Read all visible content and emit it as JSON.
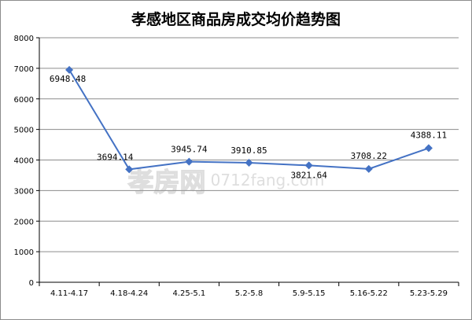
{
  "chart_data": {
    "type": "line",
    "title": "孝感地区商品房成交均价趋势图",
    "categories": [
      "4.11-4.17",
      "4.18-4.24",
      "4.25-5.1",
      "5.2-5.8",
      "5.9-5.15",
      "5.16-5.22",
      "5.23-5.29"
    ],
    "series": [
      {
        "values": [
          6948.48,
          3694.14,
          3945.74,
          3910.85,
          3821.64,
          3708.22,
          4388.11
        ],
        "labels": [
          "6948.48",
          "3694.14",
          "3945.74",
          "3910.85",
          "3821.64",
          "3708.22",
          "4388.11"
        ],
        "color": "#4472C4"
      }
    ],
    "ylim": [
      0,
      8000
    ],
    "yticks": [
      "0",
      "1000",
      "2000",
      "3000",
      "4000",
      "5000",
      "6000",
      "7000",
      "8000"
    ],
    "grid": true,
    "legend": "none",
    "xlabel": "",
    "ylabel": ""
  },
  "watermark": {
    "brand": "孝房网",
    "site": "0712fang.com"
  }
}
